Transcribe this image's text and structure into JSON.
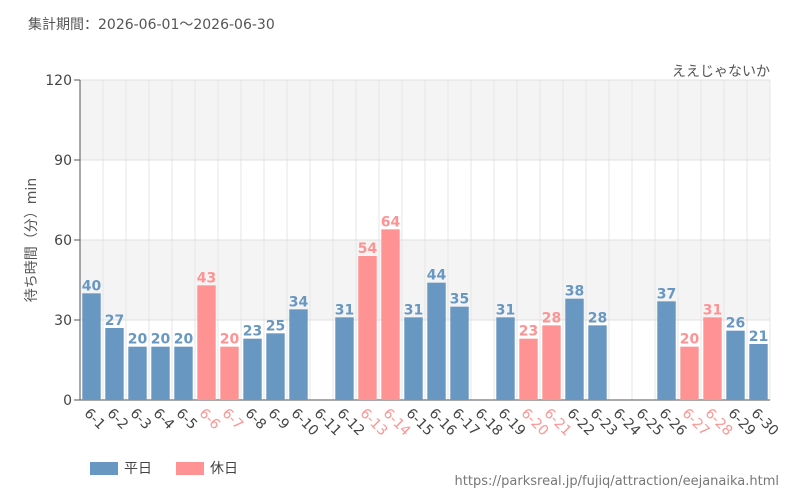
{
  "header": {
    "period": "集計期間：2026-06-01～2026-06-30"
  },
  "legend": {
    "weekday": "平日",
    "holiday": "休日"
  },
  "footer": {
    "url": "https://parksreal.jp/fujiq/attraction/eejanaika.html"
  },
  "colors": {
    "weekday": "#6897c2",
    "holiday": "#ff9393"
  },
  "chart_data": {
    "type": "bar",
    "title": "ええじゃないか",
    "ylabel": "待ち時間（分）min",
    "ylim": [
      0,
      120
    ],
    "yticks": [
      0,
      30,
      60,
      90,
      120
    ],
    "grid": true,
    "categories": [
      "6-1",
      "6-2",
      "6-3",
      "6-4",
      "6-5",
      "6-6",
      "6-7",
      "6-8",
      "6-9",
      "6-10",
      "6-11",
      "6-12",
      "6-13",
      "6-14",
      "6-15",
      "6-16",
      "6-17",
      "6-18",
      "6-19",
      "6-20",
      "6-21",
      "6-22",
      "6-23",
      "6-24",
      "6-25",
      "6-26",
      "6-27",
      "6-28",
      "6-29",
      "6-30"
    ],
    "values": [
      40,
      27,
      20,
      20,
      20,
      43,
      20,
      23,
      25,
      34,
      null,
      31,
      54,
      64,
      31,
      44,
      35,
      null,
      31,
      23,
      28,
      38,
      28,
      null,
      null,
      37,
      20,
      31,
      26,
      21
    ],
    "day_type": [
      "weekday",
      "weekday",
      "weekday",
      "weekday",
      "weekday",
      "holiday",
      "holiday",
      "weekday",
      "weekday",
      "weekday",
      "weekday",
      "weekday",
      "holiday",
      "holiday",
      "weekday",
      "weekday",
      "weekday",
      "weekday",
      "weekday",
      "holiday",
      "holiday",
      "weekday",
      "weekday",
      "weekday",
      "weekday",
      "weekday",
      "holiday",
      "holiday",
      "weekday",
      "weekday"
    ]
  }
}
